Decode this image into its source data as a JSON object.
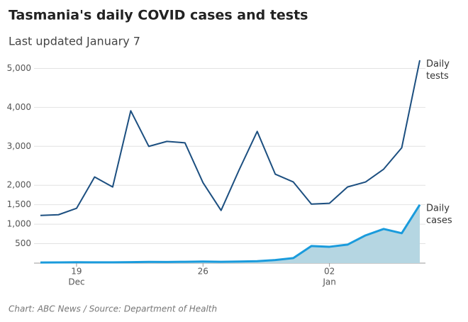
{
  "chart_data": {
    "type": "line",
    "title": "Tasmania's daily COVID cases and tests",
    "subtitle": "Last updated January 7",
    "source": "Chart: ABC News / Source: Department of Health",
    "categories": [
      null,
      null,
      "19",
      null,
      null,
      null,
      null,
      null,
      null,
      "26",
      null,
      null,
      null,
      null,
      null,
      null,
      "02",
      null,
      null,
      null,
      null,
      null
    ],
    "category_months": [
      null,
      null,
      "Dec",
      null,
      null,
      null,
      null,
      null,
      null,
      null,
      null,
      null,
      null,
      null,
      null,
      null,
      "Jan",
      null,
      null,
      null,
      null,
      null
    ],
    "series": [
      {
        "name": "Daily tests",
        "color": "#1c4f80",
        "values": [
          1225,
          1243,
          1408,
          2212,
          1956,
          3912,
          2998,
          3126,
          3090,
          2066,
          1353,
          2395,
          3382,
          2285,
          2084,
          1517,
          1536,
          1956,
          2084,
          2413,
          2962,
          5210
        ]
      },
      {
        "name": "Daily cases",
        "color": "#1a9bdc",
        "fill": "#b5d6e2",
        "values": [
          15,
          18,
          22,
          21,
          20,
          24,
          32,
          30,
          35,
          40,
          35,
          40,
          50,
          80,
          130,
          440,
          420,
          475,
          713,
          877,
          768,
          1499
        ]
      }
    ],
    "ylim": [
      0,
      5300
    ],
    "yticks": [
      500,
      {
        "value": 1000,
        "label": "1,000"
      },
      {
        "value": 1500,
        "label": "1,500"
      },
      {
        "value": 2000,
        "label": "2,000"
      },
      {
        "value": 3000,
        "label": "3,000"
      },
      {
        "value": 4000,
        "label": "4,000"
      },
      {
        "value": 5000,
        "label": "5,000"
      }
    ],
    "grid": true
  }
}
